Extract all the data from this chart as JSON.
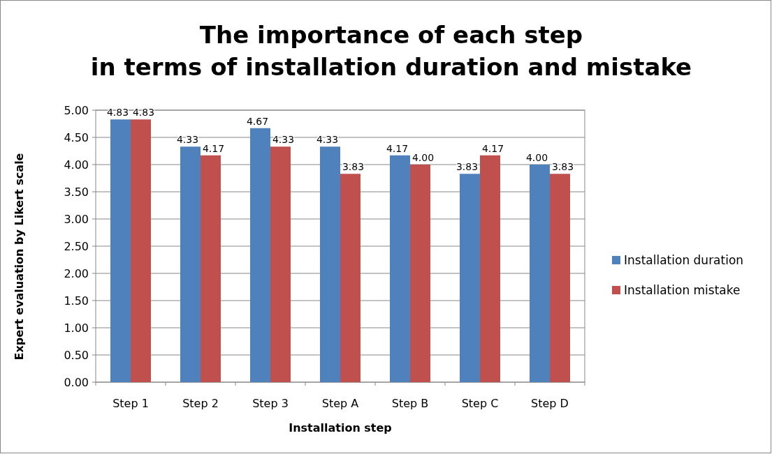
{
  "chart_data": {
    "type": "bar",
    "title": "The importance of each step\nin terms of installation duration and mistake",
    "xlabel": "Installation step",
    "ylabel": "Expert evaluation by Likert scale",
    "categories": [
      "Step 1",
      "Step 2",
      "Step 3",
      "Step A",
      "Step B",
      "Step C",
      "Step D"
    ],
    "series": [
      {
        "name": "Installation duration",
        "color": "#4f81bd",
        "values": [
          4.83,
          4.33,
          4.67,
          4.33,
          4.17,
          3.83,
          4.0
        ],
        "value_labels": [
          "4.83",
          "4.33",
          "4.67",
          "4.33",
          "4.17",
          "3.83",
          "4.00"
        ]
      },
      {
        "name": "Installation mistake",
        "color": "#c0504d",
        "values": [
          4.83,
          4.17,
          4.33,
          3.83,
          4.0,
          4.17,
          3.83
        ],
        "value_labels": [
          "4.83",
          "4.17",
          "4.33",
          "3.83",
          "4.00",
          "4.17",
          "3.83"
        ]
      }
    ],
    "ylim": [
      0,
      5
    ],
    "yticks": [
      {
        "value": 0,
        "label": "0.00"
      },
      {
        "value": 0.5,
        "label": "0.50"
      },
      {
        "value": 1,
        "label": "1.00"
      },
      {
        "value": 1.5,
        "label": "1.50"
      },
      {
        "value": 2,
        "label": "2.00"
      },
      {
        "value": 2.5,
        "label": "2.50"
      },
      {
        "value": 3,
        "label": "3.00"
      },
      {
        "value": 3.5,
        "label": "3.50"
      },
      {
        "value": 4,
        "label": "4.00"
      },
      {
        "value": 4.5,
        "label": "4.50"
      },
      {
        "value": 5,
        "label": "5.00"
      }
    ],
    "grid": "y",
    "legend": "right"
  }
}
